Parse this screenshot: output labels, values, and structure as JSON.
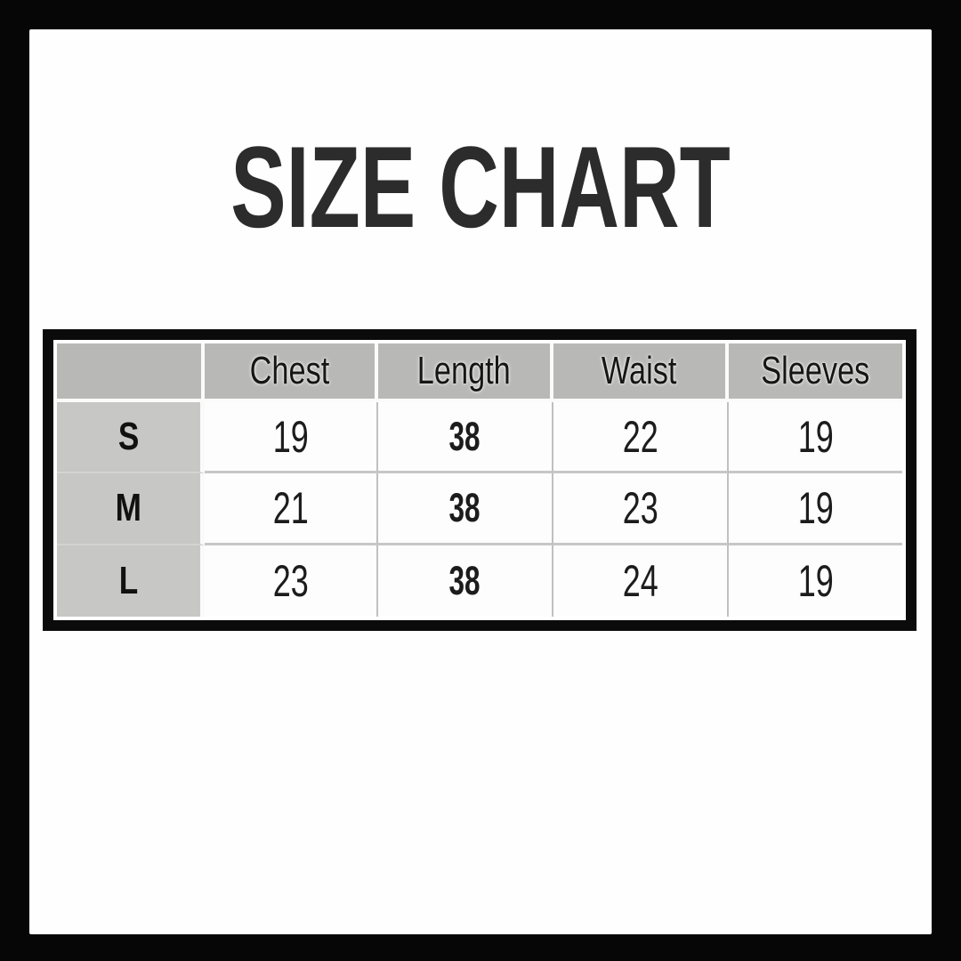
{
  "title": "SIZE CHART",
  "chart_data": {
    "type": "table",
    "title": "SIZE CHART",
    "columns": [
      "",
      "Chest",
      "Length",
      "Waist",
      "Sleeves"
    ],
    "rows": [
      [
        "S",
        "19",
        "38",
        "22",
        "19"
      ],
      [
        "M",
        "21",
        "38",
        "23",
        "19"
      ],
      [
        "L",
        "23",
        "38",
        "24",
        "19"
      ]
    ]
  },
  "colors": {
    "frame": "#060606",
    "canvas_bg": "#fefefe",
    "table_border": "#0b0b0b",
    "header_bg": "#b8b8b6",
    "label_column_bg": "#c7c7c5",
    "cell_bg": "#fdfdfd",
    "cell_separator": "#c0c0c0",
    "title_text": "#2c2c2c",
    "cell_text": "#1c1c1c"
  }
}
